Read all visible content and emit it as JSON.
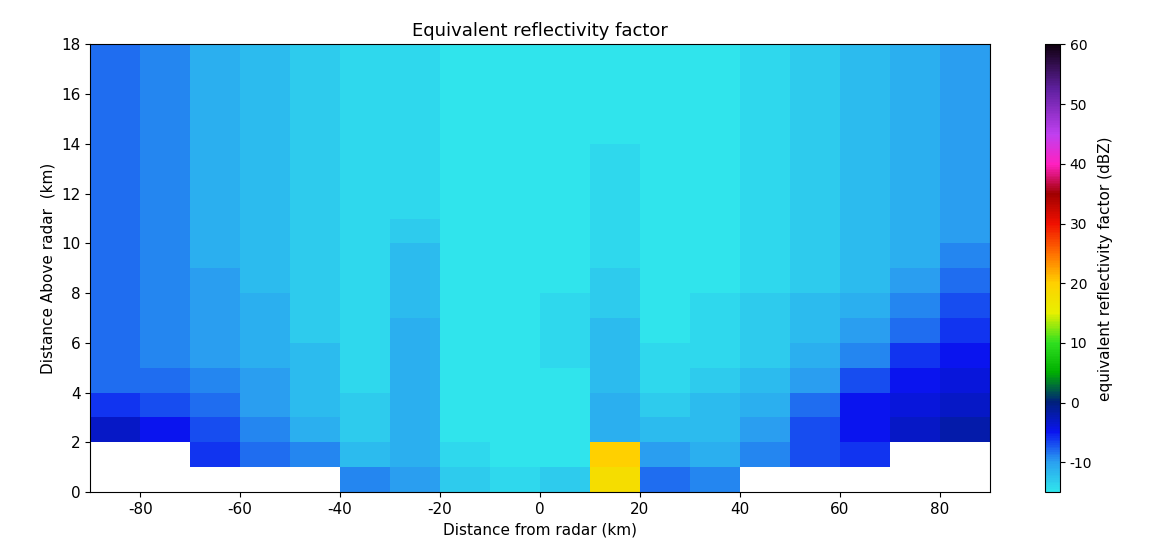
{
  "chart_data": {
    "type": "heatmap",
    "title": "Equivalent reflectivity factor",
    "x_label": "Distance from radar (km)",
    "y_label": "Distance Above radar  (km)",
    "colorbar_label": "equivalent reflectivity factor (dBZ)",
    "xlim": [
      -90,
      90
    ],
    "ylim": [
      0,
      18
    ],
    "xticks": [
      -80,
      -60,
      -40,
      -20,
      0,
      20,
      40,
      60,
      80
    ],
    "yticks": [
      0,
      2,
      4,
      6,
      8,
      10,
      12,
      14,
      16,
      18
    ],
    "clim": [
      -15,
      60
    ],
    "cticks": [
      -10,
      0,
      10,
      20,
      30,
      40,
      50,
      60
    ],
    "x_edges": [
      -90,
      -80,
      -70,
      -60,
      -50,
      -40,
      -30,
      -20,
      -10,
      0,
      10,
      20,
      30,
      40,
      50,
      60,
      70,
      80,
      90
    ],
    "y_edges": [
      0,
      1,
      2,
      3,
      4,
      5,
      6,
      7,
      8,
      9,
      10,
      11,
      12,
      13,
      14,
      15,
      16,
      17,
      18
    ],
    "cells": [
      [
        null,
        null,
        null,
        null,
        null,
        -9,
        -10,
        -13,
        -14,
        -13,
        18,
        -8,
        -9,
        null,
        null,
        null,
        null,
        null
      ],
      [
        null,
        null,
        -6,
        -8,
        -9,
        -12,
        -11,
        -14,
        -15,
        -15,
        20,
        -10,
        -11,
        -9,
        -7,
        -6,
        null,
        null
      ],
      [
        -3,
        -5,
        -7,
        -9,
        -11,
        -13,
        -11,
        -15,
        -15,
        -15,
        -11,
        -12,
        -12,
        -10,
        -7,
        -5,
        -3,
        -2
      ],
      [
        -6,
        -7,
        -8,
        -10,
        -12,
        -13,
        -11,
        -15,
        -15,
        -15,
        -11,
        -13,
        -12,
        -11,
        -8,
        -5,
        -4,
        -3
      ],
      [
        -8,
        -8,
        -9,
        -10,
        -12,
        -14,
        -11,
        -15,
        -15,
        -15,
        -12,
        -14,
        -13,
        -12,
        -10,
        -7,
        -5,
        -4
      ],
      [
        -8,
        -9,
        -10,
        -11,
        -12,
        -14,
        -11,
        -15,
        -15,
        -14,
        -12,
        -14,
        -14,
        -13,
        -11,
        -9,
        -6,
        -5
      ],
      [
        -8,
        -9,
        -10,
        -11,
        -13,
        -14,
        -11,
        -15,
        -15,
        -14,
        -12,
        -15,
        -14,
        -13,
        -12,
        -10,
        -8,
        -6
      ],
      [
        -8,
        -9,
        -10,
        -11,
        -13,
        -14,
        -12,
        -15,
        -15,
        -14,
        -13,
        -15,
        -14,
        -13,
        -12,
        -11,
        -9,
        -7
      ],
      [
        -8,
        -9,
        -10,
        -12,
        -13,
        -14,
        -12,
        -15,
        -15,
        -15,
        -13,
        -15,
        -15,
        -14,
        -13,
        -12,
        -10,
        -8
      ],
      [
        -8,
        -9,
        -11,
        -12,
        -13,
        -14,
        -12,
        -15,
        -15,
        -15,
        -14,
        -15,
        -15,
        -14,
        -13,
        -12,
        -11,
        -9
      ],
      [
        -8,
        -9,
        -11,
        -12,
        -13,
        -14,
        -13,
        -15,
        -15,
        -15,
        -14,
        -15,
        -15,
        -14,
        -13,
        -12,
        -11,
        -10
      ],
      [
        -8,
        -9,
        -11,
        -12,
        -13,
        -14,
        -14,
        -15,
        -15,
        -15,
        -14,
        -15,
        -15,
        -14,
        -13,
        -12,
        -11,
        -10
      ],
      [
        -8,
        -9,
        -11,
        -12,
        -13,
        -14,
        -14,
        -15,
        -15,
        -15,
        -14,
        -15,
        -15,
        -14,
        -13,
        -12,
        -11,
        -10
      ],
      [
        -8,
        -9,
        -11,
        -12,
        -13,
        -14,
        -14,
        -15,
        -15,
        -15,
        -14,
        -15,
        -15,
        -14,
        -13,
        -12,
        -11,
        -10
      ],
      [
        -8,
        -9,
        -11,
        -12,
        -13,
        -14,
        -14,
        -15,
        -15,
        -15,
        -15,
        -15,
        -15,
        -14,
        -13,
        -12,
        -11,
        -10
      ],
      [
        -8,
        -9,
        -11,
        -12,
        -13,
        -14,
        -14,
        -15,
        -15,
        -15,
        -15,
        -15,
        -15,
        -14,
        -13,
        -12,
        -11,
        -10
      ],
      [
        -8,
        -9,
        -11,
        -12,
        -13,
        -14,
        -14,
        -15,
        -15,
        -15,
        -15,
        -15,
        -15,
        -14,
        -13,
        -12,
        -11,
        -10
      ],
      [
        -8,
        -9,
        -11,
        -12,
        -13,
        -14,
        -14,
        -15,
        -15,
        -15,
        -15,
        -15,
        -15,
        -14,
        -13,
        -12,
        -11,
        -10
      ]
    ]
  }
}
